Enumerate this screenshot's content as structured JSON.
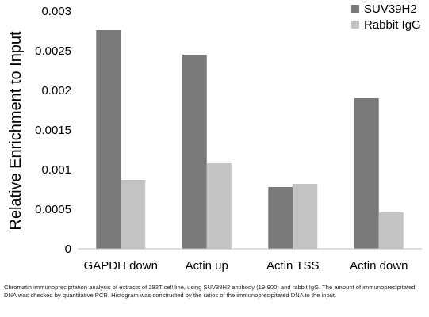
{
  "chart_data": {
    "type": "bar",
    "categories": [
      "GAPDH down",
      "Actin up",
      "Actin TSS",
      "Actin down"
    ],
    "series": [
      {
        "name": "SUV39H2",
        "color": "#7a7a7a",
        "values": [
          0.00276,
          0.00245,
          0.00078,
          0.0019
        ]
      },
      {
        "name": "Rabbit IgG",
        "color": "#c3c3c3",
        "values": [
          0.00087,
          0.00108,
          0.00082,
          0.00046
        ]
      }
    ],
    "title": "",
    "xlabel": "",
    "ylabel": "Relative Enrichment to Input",
    "ylim": [
      0,
      0.003
    ],
    "yticks": [
      "0",
      "0.0005",
      "0.001",
      "0.0015",
      "0.002",
      "0.0025",
      "0.003"
    ],
    "grid": false,
    "legend": "top-right"
  },
  "caption": "Chromatin immunoprecipitation analysis of extracts of 293T cell line, using SUV39H2 antibody (19-900) and rabbit IgG. The amount of immunoprecipitated DNA was checked by quantitative PCR. Histogram was constructed by the ratios of the immunoprecipitated DNA to the input."
}
